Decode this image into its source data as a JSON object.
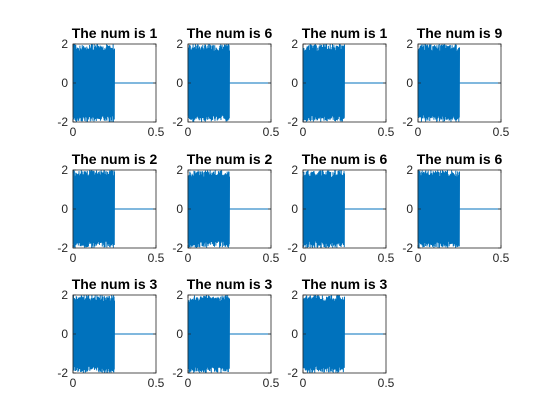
{
  "figure": {
    "background": "#ffffff",
    "line_color": "#0072bd",
    "axis_color": "#262626"
  },
  "chart_data": [
    {
      "type": "line",
      "title": "The num is 1",
      "xlabel": "",
      "ylabel": "",
      "xlim": [
        0,
        0.5
      ],
      "ylim": [
        -2,
        2
      ],
      "xticks": [
        "0",
        "0.5"
      ],
      "yticks": [
        "2",
        "0",
        "-2"
      ],
      "signal": {
        "x_start": 0,
        "x_end": 0.25,
        "amplitude": 2,
        "zero_line_to": 0.5,
        "digit": 1
      }
    },
    {
      "type": "line",
      "title": "The num is 6",
      "xlabel": "",
      "ylabel": "",
      "xlim": [
        0,
        0.5
      ],
      "ylim": [
        -2,
        2
      ],
      "xticks": [
        "0",
        "0.5"
      ],
      "yticks": [
        "2",
        "0",
        "-2"
      ],
      "signal": {
        "x_start": 0,
        "x_end": 0.25,
        "amplitude": 2,
        "zero_line_to": 0.5,
        "digit": 6
      }
    },
    {
      "type": "line",
      "title": "The num is 1",
      "xlabel": "",
      "ylabel": "",
      "xlim": [
        0,
        0.5
      ],
      "ylim": [
        -2,
        2
      ],
      "xticks": [
        "0",
        "0.5"
      ],
      "yticks": [
        "2",
        "0",
        "-2"
      ],
      "signal": {
        "x_start": 0,
        "x_end": 0.25,
        "amplitude": 2,
        "zero_line_to": 0.5,
        "digit": 1
      }
    },
    {
      "type": "line",
      "title": "The num is 9",
      "xlabel": "",
      "ylabel": "",
      "xlim": [
        0,
        0.5
      ],
      "ylim": [
        -2,
        2
      ],
      "xticks": [
        "0",
        "0.5"
      ],
      "yticks": [
        "2",
        "0",
        "-2"
      ],
      "signal": {
        "x_start": 0,
        "x_end": 0.25,
        "amplitude": 2,
        "zero_line_to": 0.5,
        "digit": 9
      }
    },
    {
      "type": "line",
      "title": "The num is 2",
      "xlabel": "",
      "ylabel": "",
      "xlim": [
        0,
        0.5
      ],
      "ylim": [
        -2,
        2
      ],
      "xticks": [
        "0",
        "0.5"
      ],
      "yticks": [
        "2",
        "0",
        "-2"
      ],
      "signal": {
        "x_start": 0,
        "x_end": 0.25,
        "amplitude": 2,
        "zero_line_to": 0.5,
        "digit": 2
      }
    },
    {
      "type": "line",
      "title": "The num is 2",
      "xlabel": "",
      "ylabel": "",
      "xlim": [
        0,
        0.5
      ],
      "ylim": [
        -2,
        2
      ],
      "xticks": [
        "0",
        "0.5"
      ],
      "yticks": [
        "2",
        "0",
        "-2"
      ],
      "signal": {
        "x_start": 0,
        "x_end": 0.25,
        "amplitude": 2,
        "zero_line_to": 0.5,
        "digit": 2
      }
    },
    {
      "type": "line",
      "title": "The num is 6",
      "xlabel": "",
      "ylabel": "",
      "xlim": [
        0,
        0.5
      ],
      "ylim": [
        -2,
        2
      ],
      "xticks": [
        "0",
        "0.5"
      ],
      "yticks": [
        "2",
        "0",
        "-2"
      ],
      "signal": {
        "x_start": 0,
        "x_end": 0.25,
        "amplitude": 2,
        "zero_line_to": 0.5,
        "digit": 6
      }
    },
    {
      "type": "line",
      "title": "The num is 6",
      "xlabel": "",
      "ylabel": "",
      "xlim": [
        0,
        0.5
      ],
      "ylim": [
        -2,
        2
      ],
      "xticks": [
        "0",
        "0.5"
      ],
      "yticks": [
        "2",
        "0",
        "-2"
      ],
      "signal": {
        "x_start": 0,
        "x_end": 0.25,
        "amplitude": 2,
        "zero_line_to": 0.5,
        "digit": 6
      }
    },
    {
      "type": "line",
      "title": "The num is 3",
      "xlabel": "",
      "ylabel": "",
      "xlim": [
        0,
        0.5
      ],
      "ylim": [
        -2,
        2
      ],
      "xticks": [
        "0",
        "0.5"
      ],
      "yticks": [
        "2",
        "0",
        "-2"
      ],
      "signal": {
        "x_start": 0,
        "x_end": 0.25,
        "amplitude": 2,
        "zero_line_to": 0.5,
        "digit": 3
      }
    },
    {
      "type": "line",
      "title": "The num is 3",
      "xlabel": "",
      "ylabel": "",
      "xlim": [
        0,
        0.5
      ],
      "ylim": [
        -2,
        2
      ],
      "xticks": [
        "0",
        "0.5"
      ],
      "yticks": [
        "2",
        "0",
        "-2"
      ],
      "signal": {
        "x_start": 0,
        "x_end": 0.25,
        "amplitude": 2,
        "zero_line_to": 0.5,
        "digit": 3
      }
    },
    {
      "type": "line",
      "title": "The num is 3",
      "xlabel": "",
      "ylabel": "",
      "xlim": [
        0,
        0.5
      ],
      "ylim": [
        -2,
        2
      ],
      "xticks": [
        "0",
        "0.5"
      ],
      "yticks": [
        "2",
        "0",
        "-2"
      ],
      "signal": {
        "x_start": 0,
        "x_end": 0.25,
        "amplitude": 2,
        "zero_line_to": 0.5,
        "digit": 3
      }
    }
  ]
}
